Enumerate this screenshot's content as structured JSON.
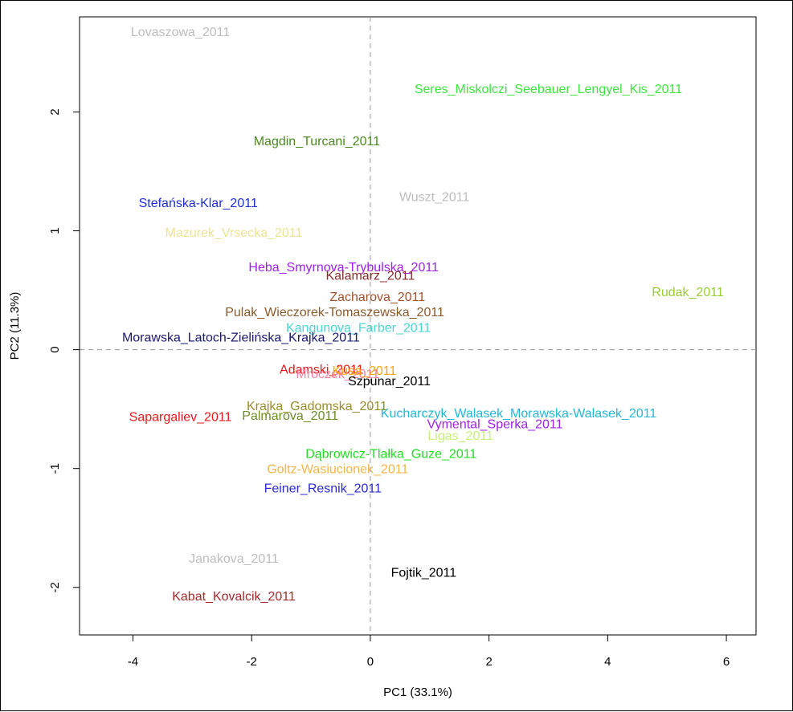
{
  "chart_data": {
    "type": "scatter",
    "xlabel": "PC1 (33.1%)",
    "ylabel": "PC2 (11.3%)",
    "xlim": [
      -4.9,
      6.5
    ],
    "ylim": [
      -2.4,
      2.8
    ],
    "x_ticks": [
      -4,
      -2,
      0,
      2,
      4,
      6
    ],
    "y_ticks": [
      -2,
      -1,
      0,
      1,
      2
    ],
    "reference_lines": {
      "x": 0,
      "y": 0,
      "style": "dashed"
    },
    "grid": false,
    "legend": "none",
    "points": [
      {
        "label": "Lovaszowa_2011",
        "x": -3.2,
        "y": 2.68,
        "color": "#bdbdbd"
      },
      {
        "label": "Seres_Miskolczi_Seebauer_Lengyel_Kis_2011",
        "x": 3.0,
        "y": 2.2,
        "color": "#3ee63e"
      },
      {
        "label": "Magdin_Turcani_2011",
        "x": -0.9,
        "y": 1.76,
        "color": "#4a8a1e"
      },
      {
        "label": "Wuszt_2011",
        "x": 1.08,
        "y": 1.29,
        "color": "#bdbdbd"
      },
      {
        "label": "Stefańska-Klar_2011",
        "x": -2.9,
        "y": 1.24,
        "color": "#1f2fd6"
      },
      {
        "label": "Mazurek_Vrsecka_2011",
        "x": -2.3,
        "y": 0.99,
        "color": "#ede396"
      },
      {
        "label": "Heba_Smyrnova-Trybulska_2011",
        "x": -0.45,
        "y": 0.7,
        "color": "#a020f0"
      },
      {
        "label": "Kalamarz_2011",
        "x": 0.0,
        "y": 0.63,
        "color": "#8b2c2c"
      },
      {
        "label": "Rudak_2011",
        "x": 5.35,
        "y": 0.49,
        "color": "#9acd32"
      },
      {
        "label": "Zacharova_2011",
        "x": 0.12,
        "y": 0.45,
        "color": "#a0522d"
      },
      {
        "label": "Pulak_Wieczorek-Tomaszewska_2011",
        "x": -0.6,
        "y": 0.32,
        "color": "#8b5a2b"
      },
      {
        "label": "Kangunova_Farber_2011",
        "x": -0.2,
        "y": 0.19,
        "color": "#4dd4d4"
      },
      {
        "label": "Morawska_Latoch-Zielińska_Krajka_2011",
        "x": -2.18,
        "y": 0.11,
        "color": "#191970"
      },
      {
        "label": "Adamski_2011",
        "x": -0.82,
        "y": -0.16,
        "color": "#e51a1a"
      },
      {
        "label": "Mroczek_2011",
        "x": -0.55,
        "y": -0.2,
        "color": "#ff7fa0"
      },
      {
        "label": "Kusa_2011",
        "x": -0.1,
        "y": -0.17,
        "color": "#ffa500"
      },
      {
        "label": "Szpunar_2011",
        "x": 0.32,
        "y": -0.26,
        "color": "#000000"
      },
      {
        "label": "Krajka_Gadomska_2011",
        "x": -0.9,
        "y": -0.47,
        "color": "#9b8d2b"
      },
      {
        "label": "Sapargaliev_2011",
        "x": -3.2,
        "y": -0.56,
        "color": "#e51a1a"
      },
      {
        "label": "Palmarova_2011",
        "x": -1.35,
        "y": -0.55,
        "color": "#6b8e23"
      },
      {
        "label": "Kucharczyk_Walasek_Morawska-Walasek_2011",
        "x": 2.5,
        "y": -0.53,
        "color": "#22b8d8"
      },
      {
        "label": "Vymental_Sperka_2011",
        "x": 2.1,
        "y": -0.62,
        "color": "#a020f0"
      },
      {
        "label": "Ligas_2011",
        "x": 1.52,
        "y": -0.72,
        "color": "#c6f07a"
      },
      {
        "label": "Dąbrowicz-Tlałka_Guze_2011",
        "x": 0.35,
        "y": -0.87,
        "color": "#22dd22"
      },
      {
        "label": "Goltz-Wasiucionek_2011",
        "x": -0.55,
        "y": -1.0,
        "color": "#f2b64a"
      },
      {
        "label": "Feiner_Resnik_2011",
        "x": -0.8,
        "y": -1.16,
        "color": "#2a2ad0"
      },
      {
        "label": "Janakova_2011",
        "x": -2.3,
        "y": -1.75,
        "color": "#bdbdbd"
      },
      {
        "label": "Fojtik_2011",
        "x": 0.9,
        "y": -1.87,
        "color": "#000000"
      },
      {
        "label": "Kabat_Kovalcik_2011",
        "x": -2.3,
        "y": -2.07,
        "color": "#a52a2a"
      }
    ]
  }
}
